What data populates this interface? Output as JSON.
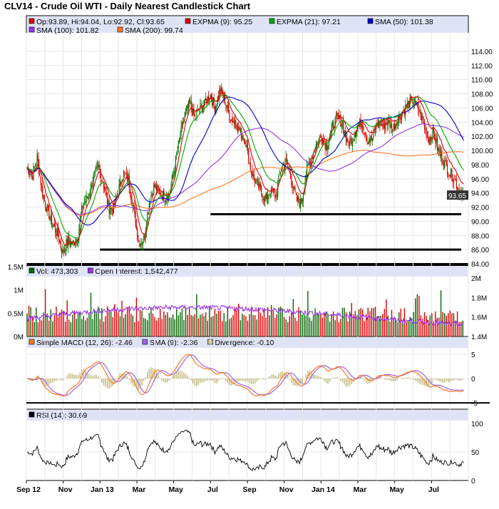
{
  "title": "CLV14 - Crude Oil WTI - Daily Nearest Candlestick Chart",
  "colors": {
    "legend_bg": "#dfe3f7",
    "up": "#007a00",
    "down": "#dd0000",
    "expma9": "#dd0000",
    "expma21": "#00aa00",
    "sma50": "#0000cc",
    "sma100": "#9933ee",
    "sma200": "#ff7722",
    "volume_up": "#006600",
    "volume_down": "#dd0000",
    "open_interest": "#9933ee",
    "macd": "#ff7722",
    "macd_signal": "#9966ee",
    "divergence": "#c8c08a",
    "rsi": "#000000"
  },
  "price_legend": [
    {
      "swatch": "#dd0000",
      "text": "Op:93.89, Hi:94.04, Lo:92.92, Cl:93.65"
    },
    {
      "swatch": "#dd0000",
      "text": "EXPMA (9): 95.25"
    },
    {
      "swatch": "#00aa00",
      "text": "EXPMA (21): 97.21"
    },
    {
      "swatch": "#0000cc",
      "text": "SMA (50): 101.38"
    },
    {
      "swatch": "#9933ee",
      "text": "SMA (100): 101.82"
    },
    {
      "swatch": "#ff7722",
      "text": "SMA (200): 99.74"
    }
  ],
  "volume_legend": [
    {
      "swatch": "#006600",
      "text": "Vol: 473,303"
    },
    {
      "swatch": "#9933ee",
      "text": "Open Interest: 1,542,477"
    }
  ],
  "macd_legend": [
    {
      "swatch": "#ff7722",
      "text": "Simple MACD (12, 26): -2.46"
    },
    {
      "swatch": "#9966ee",
      "text": "SMA (9): -2.36"
    },
    {
      "swatch": "#c8c08a",
      "text": "Divergence: -0.10"
    }
  ],
  "rsi_legend": [
    {
      "swatch": "#000000",
      "text": "RSI (14): 30.69"
    }
  ],
  "last_price_label": "93.65",
  "x_labels": [
    "Sep 12",
    "Nov",
    "Jan 13",
    "Mar",
    "May",
    "Jul",
    "Sep",
    "Nov",
    "Jan 14",
    "Mar",
    "May",
    "Jul"
  ],
  "chart_data": {
    "type": "candlestick",
    "x_start": "2012-09",
    "x_end": "2014-08",
    "price": {
      "ylim": [
        84,
        116
      ],
      "ticks": [
        "84.00",
        "86.00",
        "88.00",
        "90.00",
        "92.00",
        "94.00",
        "96.00",
        "98.00",
        "100.00",
        "102.00",
        "104.00",
        "106.00",
        "108.00",
        "110.00",
        "112.00",
        "114.00"
      ],
      "close_anchors": [
        97.5,
        96.5,
        99,
        94,
        91.5,
        89.5,
        88.2,
        85.5,
        87.2,
        86.8,
        88,
        92.5,
        93.5,
        96,
        97.5,
        95.5,
        92,
        91.5,
        94.5,
        96.8,
        95.8,
        91.5,
        87,
        87.5,
        92.5,
        95,
        94.2,
        93.5,
        93.8,
        97.5,
        101.5,
        105,
        106.5,
        104.5,
        106,
        106.5,
        108,
        106,
        108.5,
        107,
        104.5,
        104,
        102.5,
        101.5,
        97.5,
        95.5,
        94.5,
        93,
        94.2,
        93.5,
        97.5,
        98.5,
        96,
        93,
        92.5,
        97,
        99,
        101,
        102,
        100.5,
        103,
        104.5,
        104,
        101,
        101.5,
        103.5,
        104,
        101.5,
        101.5,
        104,
        103.5,
        104,
        103,
        104.5,
        105.5,
        106.5,
        107,
        106,
        104,
        101.5,
        102.5,
        100,
        98.5,
        97,
        96.2,
        94.5,
        93.65
      ],
      "expma9_last": 95.25,
      "expma21_last": 97.21,
      "sma50_last": 101.38,
      "sma100_last": 101.82,
      "sma200_last": 99.74,
      "support_lines": [
        {
          "level": 91.0,
          "from": "2013-07"
        },
        {
          "level": 86.0,
          "from": "2013-01"
        }
      ],
      "last": {
        "open": 93.89,
        "high": 94.04,
        "low": 92.92,
        "close": 93.65
      }
    },
    "volume": {
      "left_ticks": [
        "0M",
        "0.5M",
        "1M",
        "1.5M"
      ],
      "right_ticks": [
        "1.4M",
        "1.6M",
        "1.8M",
        "2M"
      ],
      "last_volume": 473303,
      "last_open_interest": 1542477
    },
    "macd": {
      "ticks": [
        "-5",
        "0",
        "5"
      ],
      "macd_last": -2.46,
      "signal_last": -2.36,
      "divergence_last": -0.1
    },
    "rsi": {
      "ticks": [
        "0",
        "50",
        "100"
      ],
      "last": 30.69
    }
  }
}
